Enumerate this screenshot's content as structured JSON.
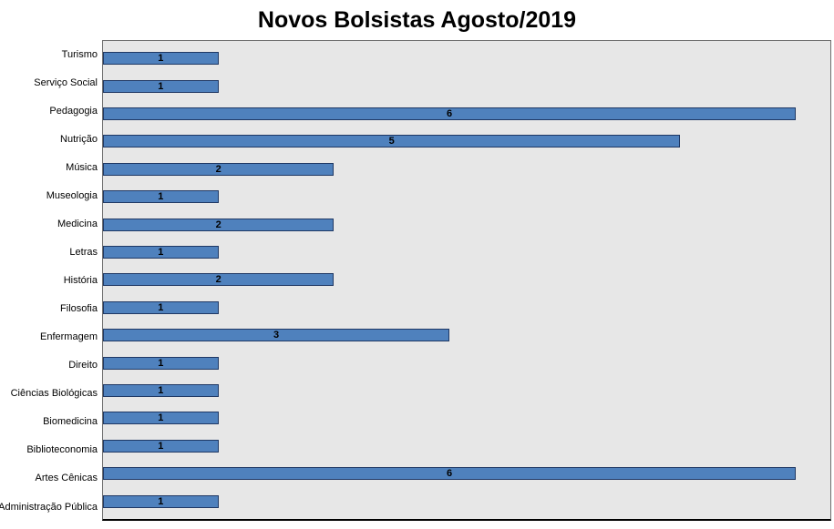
{
  "title": "Novos Bolsistas Agosto/2019",
  "chart_data": {
    "type": "bar",
    "orientation": "horizontal",
    "title": "Novos Bolsistas Agosto/2019",
    "xlabel": "",
    "ylabel": "",
    "xlim": [
      0,
      6.3
    ],
    "grid": false,
    "legend": "none",
    "data_labels": "centered-in-bar",
    "bar_color": "#4f81bd",
    "bar_border_color": "#1f3864",
    "plot_background": "#e7e7e7",
    "categories": [
      "Turismo",
      "Serviço Social",
      "Pedagogia",
      "Nutrição",
      "Música",
      "Museologia",
      "Medicina",
      "Letras",
      "História",
      "Filosofia",
      "Enfermagem",
      "Direito",
      "Ciências Biológicas",
      "Biomedicina",
      "Biblioteconomia",
      "Artes Cênicas",
      "Administração Pública"
    ],
    "values": [
      1,
      1,
      6,
      5,
      2,
      1,
      2,
      1,
      2,
      1,
      3,
      1,
      1,
      1,
      1,
      6,
      1
    ]
  }
}
